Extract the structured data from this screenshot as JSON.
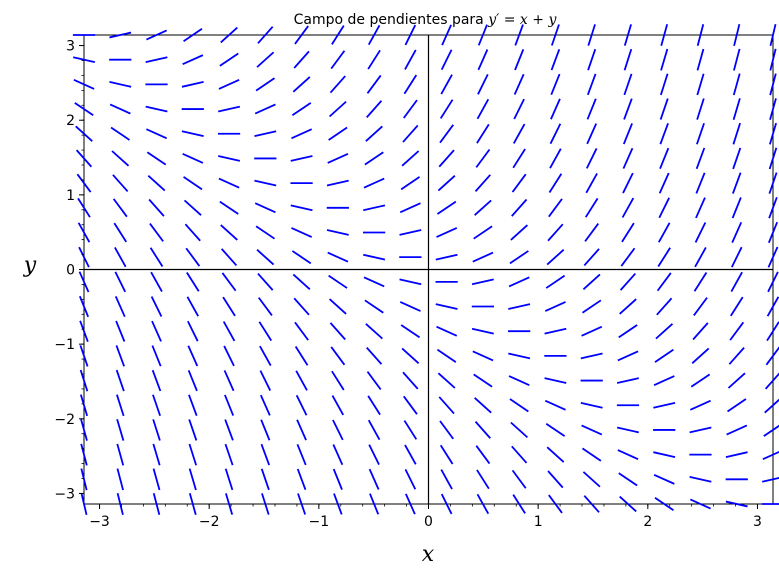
{
  "chart_data": {
    "type": "slope-field",
    "title": {
      "text": "Campo de pendientes para ",
      "math": "y′ = x + y"
    },
    "xlabel": "x",
    "ylabel": "y",
    "xlim": [
      -3.14159,
      3.14159
    ],
    "ylim": [
      -3.14159,
      3.14159
    ],
    "xticks": [
      -3,
      -2,
      -1,
      0,
      1,
      2,
      3
    ],
    "yticks": [
      -3,
      -2,
      -1,
      0,
      1,
      2,
      3
    ],
    "xtick_labels": [
      "−3",
      "−2",
      "−1",
      "0",
      "1",
      "2",
      "3"
    ],
    "ytick_labels": [
      "−3",
      "−2",
      "−1",
      "0",
      "1",
      "2",
      "3"
    ],
    "grid": false,
    "field": {
      "equation": "x + y",
      "points_per_axis": 20,
      "color": "#0000ff"
    },
    "axes_color": "#000000"
  }
}
